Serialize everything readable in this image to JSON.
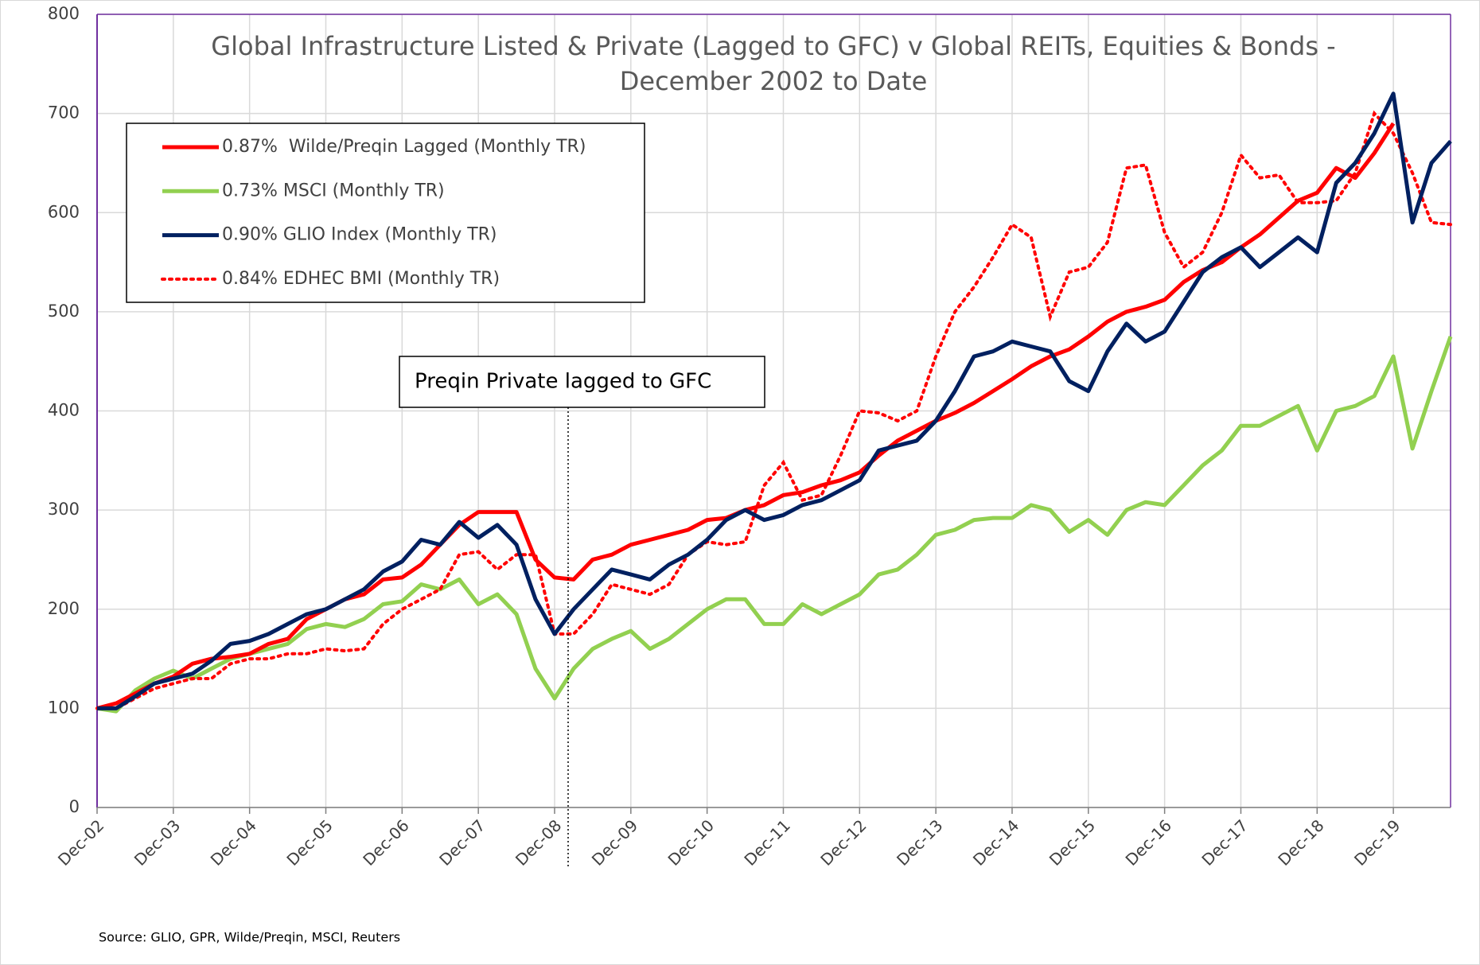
{
  "chart_data": {
    "type": "line",
    "title": "Global Infrastructure  Listed & Private (Lagged to GFC) v Global REITs, Equities & Bonds - December 2002 to Date",
    "annotation": "Preqin Private lagged to GFC",
    "source": "Source: GLIO, GPR, Wilde/Preqin, MSCI, Reuters",
    "categories": [
      "Dec-02",
      null,
      null,
      null,
      "Dec-03",
      null,
      null,
      null,
      "Dec-04",
      null,
      null,
      null,
      "Dec-05",
      null,
      null,
      null,
      "Dec-06",
      null,
      null,
      null,
      "Dec-07",
      null,
      null,
      null,
      "Dec-08",
      null,
      null,
      null,
      "Dec-09",
      null,
      null,
      null,
      "Dec-10",
      null,
      null,
      null,
      "Dec-11",
      null,
      null,
      null,
      "Dec-12",
      null,
      null,
      null,
      "Dec-13",
      null,
      null,
      null,
      "Dec-14",
      null,
      null,
      null,
      "Dec-15",
      null,
      null,
      null,
      "Dec-16",
      null,
      null,
      null,
      "Dec-17",
      null,
      null,
      null,
      "Dec-18",
      null,
      null,
      null,
      "Dec-19",
      null,
      null,
      null
    ],
    "ylim": [
      0,
      800
    ],
    "yticks": [
      0,
      100,
      200,
      300,
      400,
      500,
      600,
      700,
      800
    ],
    "grid": true,
    "legend": "upper-left",
    "series": [
      {
        "name": "0.87%  Wilde/Preqin Lagged (Monthly TR)",
        "color": "#ff0000",
        "style": "solid",
        "values": [
          100,
          105,
          115,
          125,
          132,
          145,
          150,
          152,
          155,
          165,
          170,
          190,
          200,
          210,
          215,
          230,
          232,
          245,
          265,
          285,
          298,
          298,
          298,
          250,
          232,
          230,
          250,
          255,
          265,
          270,
          275,
          280,
          290,
          292,
          300,
          305,
          315,
          318,
          325,
          330,
          338,
          355,
          370,
          380,
          390,
          398,
          408,
          420,
          432,
          445,
          455,
          462,
          475,
          490,
          500,
          505,
          512,
          530,
          542,
          550,
          565,
          578,
          595,
          612,
          620,
          645,
          635,
          660,
          690,
          null,
          null,
          null
        ]
      },
      {
        "name": "0.73% MSCI (Monthly TR)",
        "color": "#92d050",
        "style": "solid",
        "values": [
          100,
          97,
          118,
          130,
          138,
          130,
          140,
          150,
          155,
          160,
          165,
          180,
          185,
          182,
          190,
          205,
          208,
          225,
          220,
          230,
          205,
          215,
          195,
          140,
          110,
          140,
          160,
          170,
          178,
          160,
          170,
          185,
          200,
          210,
          210,
          185,
          185,
          205,
          195,
          205,
          215,
          235,
          240,
          255,
          275,
          280,
          290,
          292,
          292,
          305,
          300,
          278,
          290,
          275,
          300,
          308,
          305,
          325,
          345,
          360,
          385,
          385,
          395,
          405,
          360,
          400,
          405,
          415,
          455,
          362,
          420,
          475
        ]
      },
      {
        "name": "0.90% GLIO Index (Monthly TR)",
        "color": "#002060",
        "style": "solid",
        "values": [
          100,
          100,
          112,
          125,
          130,
          135,
          148,
          165,
          168,
          175,
          185,
          195,
          200,
          210,
          220,
          238,
          248,
          270,
          265,
          288,
          272,
          285,
          265,
          210,
          175,
          200,
          220,
          240,
          235,
          230,
          245,
          255,
          270,
          290,
          300,
          290,
          295,
          305,
          310,
          320,
          330,
          360,
          365,
          370,
          390,
          420,
          455,
          460,
          470,
          465,
          460,
          430,
          420,
          460,
          488,
          470,
          480,
          510,
          540,
          555,
          565,
          545,
          560,
          575,
          560,
          630,
          650,
          680,
          720,
          590,
          650,
          672
        ]
      },
      {
        "name": "0.84% EDHEC BMI (Monthly TR)",
        "color": "#ff0000",
        "style": "dotted",
        "values": [
          100,
          100,
          110,
          120,
          125,
          130,
          130,
          145,
          150,
          150,
          155,
          155,
          160,
          158,
          160,
          185,
          200,
          210,
          220,
          255,
          258,
          240,
          255,
          255,
          175,
          175,
          195,
          225,
          220,
          215,
          225,
          255,
          268,
          265,
          268,
          325,
          348,
          310,
          315,
          355,
          400,
          398,
          390,
          400,
          455,
          500,
          525,
          555,
          588,
          575,
          495,
          540,
          545,
          570,
          645,
          648,
          580,
          545,
          560,
          600,
          658,
          635,
          638,
          610,
          610,
          612,
          640,
          700,
          680,
          640,
          590,
          588
        ]
      }
    ]
  }
}
